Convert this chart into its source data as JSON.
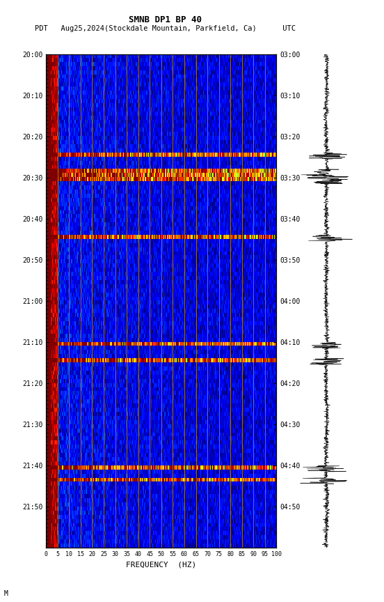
{
  "title_line1": "SMNB DP1 BP 40",
  "title_line2": "PDT   Aug25,2024(Stockdale Mountain, Parkfield, Ca)      UTC",
  "xlabel": "FREQUENCY  (HZ)",
  "x_tick_labels": [
    "0",
    "5",
    "10",
    "15",
    "20",
    "25",
    "30",
    "35",
    "40",
    "45",
    "50",
    "55",
    "60",
    "65",
    "70",
    "75",
    "80",
    "85",
    "90",
    "95",
    "100"
  ],
  "x_tick_positions": [
    0,
    5,
    10,
    15,
    20,
    25,
    30,
    35,
    40,
    45,
    50,
    55,
    60,
    65,
    70,
    75,
    80,
    85,
    90,
    95,
    100
  ],
  "left_time_labels": [
    "20:00",
    "20:10",
    "20:20",
    "20:30",
    "20:40",
    "20:50",
    "21:00",
    "21:10",
    "21:20",
    "21:30",
    "21:40",
    "21:50"
  ],
  "right_time_labels": [
    "03:00",
    "03:10",
    "03:20",
    "03:30",
    "03:40",
    "03:50",
    "04:00",
    "04:10",
    "04:20",
    "04:30",
    "04:40",
    "04:50"
  ],
  "freq_min": 0,
  "freq_max": 100,
  "time_steps": 120,
  "freq_steps": 500,
  "background_color": "#000000",
  "fig_bg": "#ffffff",
  "vertical_line_color": "#b8860b",
  "vertical_line_positions": [
    5,
    10,
    15,
    20,
    25,
    30,
    35,
    40,
    45,
    50,
    55,
    60,
    65,
    70,
    75,
    80,
    85,
    90,
    95
  ],
  "colormap": "jet",
  "seismogram_color": "#000000"
}
